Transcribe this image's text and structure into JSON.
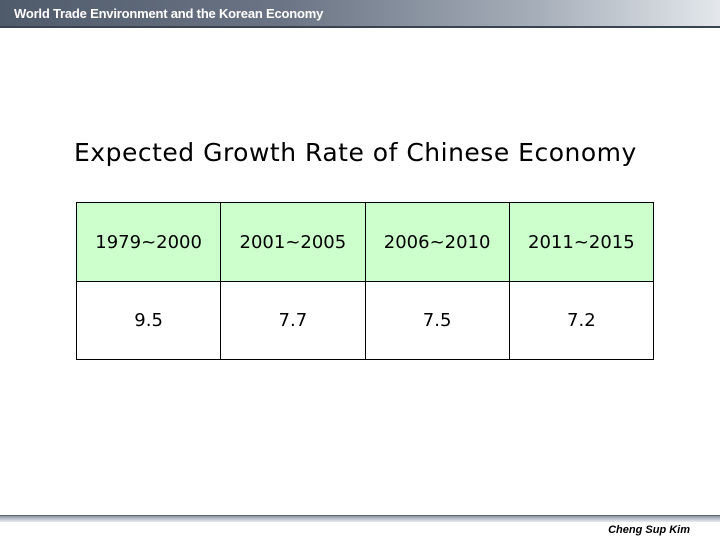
{
  "header": {
    "title": "World Trade Environment and the Korean Economy"
  },
  "slide": {
    "title": "Expected Growth Rate of Chinese Economy"
  },
  "table": {
    "periods": [
      "1979~2000",
      "2001~2005",
      "2006~2010",
      "2011~2015"
    ],
    "rates": [
      "9.5",
      "7.7",
      "7.5",
      "7.2"
    ]
  },
  "footer": {
    "author": "Cheng Sup Kim"
  },
  "colors": {
    "header_row_bg": "#ccffcc",
    "header_bar_dark": "#4f5a6a"
  }
}
